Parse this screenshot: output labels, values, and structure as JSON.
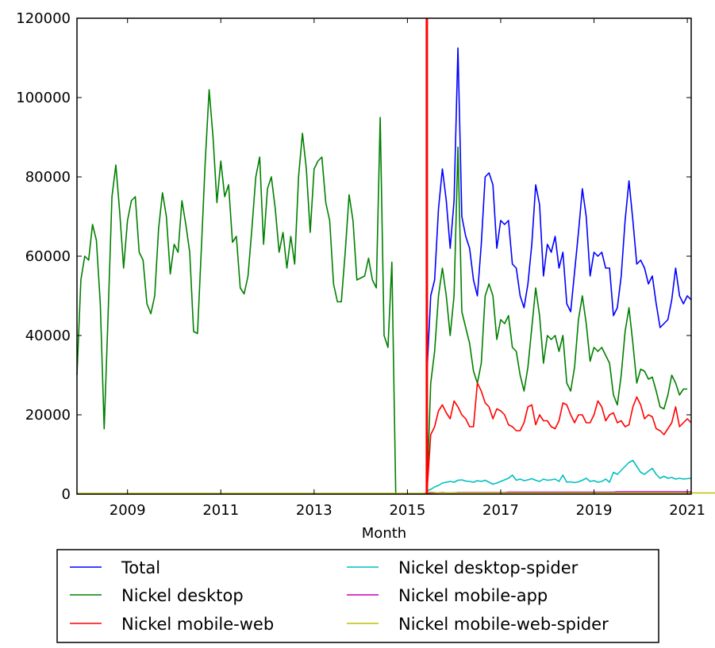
{
  "chart_data": {
    "type": "line",
    "title": "",
    "xlabel": "Month",
    "ylabel": "",
    "xlim": [
      "2007-12",
      "2021-02"
    ],
    "ylim": [
      0,
      120000
    ],
    "grid": false,
    "legend_position": "bottom",
    "x_ticks": [
      "2009",
      "2011",
      "2013",
      "2015",
      "2017",
      "2019",
      "2021"
    ],
    "y_ticks": [
      "0",
      "20000",
      "40000",
      "60000",
      "80000",
      "100000",
      "120000"
    ],
    "vertical_marker": {
      "x": "2015-06",
      "color": "#ff0000"
    },
    "series": [
      {
        "name": "Total",
        "color": "#0000ff",
        "start": "2015-06",
        "values": [
          30000,
          50000,
          54000,
          72000,
          82000,
          74000,
          62000,
          74000,
          112500,
          70000,
          65000,
          62000,
          54000,
          50000,
          63000,
          80000,
          81000,
          78000,
          62000,
          69000,
          68000,
          69000,
          58000,
          57000,
          50000,
          47000,
          53000,
          63000,
          78000,
          73000,
          55000,
          63000,
          61000,
          65000,
          57000,
          61000,
          48000,
          46000,
          56000,
          66000,
          77000,
          70000,
          55000,
          61000,
          60000,
          61000,
          57000,
          57000,
          45000,
          47000,
          55000,
          69000,
          79000,
          69000,
          58000,
          59000,
          57000,
          53000,
          55000,
          48000,
          42000,
          43000,
          44000,
          49000,
          57000,
          50000,
          48000,
          50000,
          49000
        ]
      },
      {
        "name": "Nickel desktop",
        "color": "#008000",
        "start": "2007-12",
        "values": [
          30000,
          54000,
          60000,
          59000,
          68000,
          64000,
          48000,
          16500,
          45000,
          75000,
          83000,
          71000,
          57000,
          69000,
          74000,
          75000,
          61000,
          59000,
          48000,
          45500,
          50000,
          67000,
          76000,
          70000,
          55500,
          63000,
          61000,
          74000,
          68000,
          61000,
          41000,
          40500,
          62000,
          84000,
          102000,
          90000,
          73500,
          84000,
          75000,
          78000,
          63500,
          65000,
          52000,
          50500,
          55000,
          67000,
          80000,
          85000,
          63000,
          77000,
          80000,
          72000,
          61000,
          66000,
          57000,
          65000,
          58000,
          80000,
          91000,
          82000,
          66000,
          82000,
          84000,
          85000,
          73500,
          69000,
          53000,
          48500,
          48500,
          61000,
          75500,
          69000,
          54000,
          54500,
          55000,
          59500,
          54000,
          52000,
          95000,
          40000,
          37000,
          58500,
          0
        ]
      },
      {
        "name": "Nickel desktop",
        "color": "#008000",
        "start": "2015-06",
        "values": [
          0,
          28000,
          36000,
          50000,
          57000,
          50000,
          40000,
          50000,
          87500,
          46000,
          42000,
          38000,
          31000,
          28000,
          33000,
          50000,
          53000,
          50000,
          39000,
          44000,
          43000,
          45000,
          37000,
          36000,
          30000,
          26000,
          32000,
          42000,
          52000,
          45000,
          33000,
          40000,
          39000,
          40000,
          36000,
          40000,
          28000,
          26000,
          32000,
          44000,
          50000,
          43000,
          33500,
          37000,
          36000,
          37000,
          35000,
          33000,
          25000,
          22500,
          30000,
          41000,
          47000,
          38000,
          28000,
          31500,
          31000,
          29000,
          29500,
          26000,
          22000,
          21500,
          25000,
          30000,
          28000,
          25000,
          26500,
          26500
        ]
      },
      {
        "name": "Nickel mobile-web",
        "color": "#ff0000",
        "start": "2015-06",
        "values": [
          0,
          15000,
          17000,
          21000,
          22500,
          20500,
          19000,
          23500,
          22000,
          20000,
          19000,
          17000,
          17000,
          28000,
          26000,
          23000,
          22000,
          19000,
          21500,
          21000,
          20000,
          17500,
          17000,
          16000,
          16000,
          18000,
          22000,
          22500,
          17500,
          20000,
          18500,
          18500,
          17000,
          16500,
          18500,
          23000,
          22500,
          20000,
          18000,
          20000,
          20000,
          18000,
          18000,
          20000,
          23500,
          22000,
          18500,
          20000,
          20500,
          18000,
          18500,
          17000,
          17500,
          22000,
          24500,
          22500,
          19000,
          20000,
          19500,
          16500,
          16000,
          15000,
          16500,
          18000,
          22000,
          17000,
          18000,
          19000,
          18000
        ]
      },
      {
        "name": "Nickel desktop-spider",
        "color": "#00bfbf",
        "start": "2015-06",
        "values": [
          800,
          1200,
          1800,
          2200,
          2800,
          3000,
          3200,
          3000,
          3500,
          3600,
          3300,
          3200,
          3000,
          3400,
          3200,
          3500,
          3000,
          2500,
          2800,
          3200,
          3600,
          4000,
          4800,
          3500,
          3800,
          3400,
          3600,
          3900,
          3500,
          3200,
          3800,
          3500,
          3600,
          3800,
          3200,
          4800,
          3000,
          3100,
          2900,
          3100,
          3500,
          4000,
          3200,
          3400,
          3000,
          3200,
          3800,
          3000,
          5500,
          5000,
          6000,
          7000,
          8000,
          8500,
          7000,
          5500,
          5000,
          5800,
          6500,
          5000,
          4000,
          4500,
          4000,
          4200,
          3800,
          4000,
          3800,
          3900,
          4000
        ]
      },
      {
        "name": "Nickel mobile-app",
        "color": "#bf00bf",
        "start": "2015-06",
        "values": [
          200,
          300,
          300,
          300,
          400,
          300,
          300,
          300,
          400,
          400,
          400,
          400,
          400,
          400,
          400,
          400,
          400,
          400,
          400,
          400,
          400,
          500,
          500,
          500,
          500,
          500,
          500,
          500,
          500,
          500,
          500,
          500,
          500,
          500,
          500,
          500,
          500,
          500,
          500,
          500,
          500,
          500,
          500,
          500,
          500,
          500,
          500,
          500,
          500,
          600,
          600,
          600,
          600,
          600,
          600,
          600,
          600,
          600,
          600,
          600,
          600,
          600,
          600,
          600,
          600,
          600,
          600,
          600,
          600
        ]
      },
      {
        "name": "Nickel mobile-web-spider",
        "color": "#bfbf00",
        "start": "2007-12",
        "values": [
          200,
          200,
          200,
          200,
          200,
          200,
          200,
          200,
          200,
          200,
          200,
          200,
          200,
          200,
          200,
          200,
          200,
          200,
          200,
          200,
          200,
          200,
          200,
          200,
          200,
          200,
          200,
          200,
          200,
          200,
          200,
          200,
          200,
          200,
          200,
          200,
          200,
          200,
          200,
          200,
          200,
          200,
          200,
          200,
          200,
          200,
          200,
          200,
          200,
          200,
          200,
          200,
          200,
          200,
          200,
          200,
          200,
          200,
          200,
          200,
          200,
          200,
          200,
          200,
          200,
          200,
          200,
          200,
          200,
          200,
          200,
          200,
          200,
          200,
          200,
          200,
          200,
          200,
          200,
          200,
          200,
          200,
          200,
          200,
          200,
          200,
          200,
          200,
          200,
          200,
          400,
          500,
          400,
          300,
          300,
          300,
          300,
          300,
          300,
          300,
          300,
          300,
          300,
          300,
          300,
          300,
          300,
          300,
          300,
          300,
          300,
          300,
          300,
          300,
          300,
          300,
          300,
          300,
          300,
          300,
          300,
          300,
          300,
          300,
          300,
          300,
          300,
          300,
          300,
          300,
          300,
          300,
          300,
          300,
          300,
          300,
          300,
          300,
          300,
          300,
          300,
          300,
          300,
          300,
          300,
          300,
          300,
          300,
          300,
          300,
          300,
          300,
          300,
          300,
          300,
          300,
          300,
          300,
          300,
          300,
          300,
          300,
          300,
          300,
          300,
          300,
          300,
          300,
          2000,
          1000,
          500,
          400,
          400,
          300,
          300,
          300,
          300,
          300,
          300,
          300,
          300,
          300,
          300,
          300,
          300,
          300,
          300,
          300,
          300,
          300,
          300,
          300,
          300,
          300,
          300,
          300
        ]
      }
    ],
    "legend": [
      {
        "label": "Total",
        "color": "#0000ff"
      },
      {
        "label": "Nickel desktop",
        "color": "#008000"
      },
      {
        "label": "Nickel mobile-web",
        "color": "#ff0000"
      },
      {
        "label": "Nickel desktop-spider",
        "color": "#00bfbf"
      },
      {
        "label": "Nickel mobile-app",
        "color": "#bf00bf"
      },
      {
        "label": "Nickel mobile-web-spider",
        "color": "#bfbf00"
      }
    ]
  }
}
